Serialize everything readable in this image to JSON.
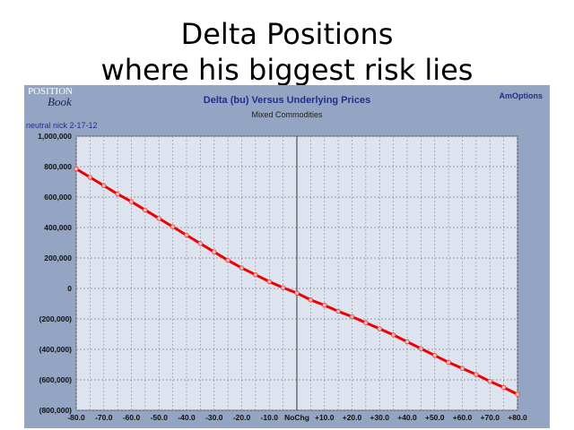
{
  "slide": {
    "title_line1": "Delta Positions",
    "title_line2": "where his biggest risk lies"
  },
  "panel": {
    "logo": "POSITION Book",
    "brand": "AmOptions",
    "note": "neutral nick 2-17-12"
  },
  "colors": {
    "panel": "#93a5c3",
    "plot": "#dde3ef",
    "line": "#ee0000"
  },
  "chart_data": {
    "type": "line",
    "title": "Delta (bu) Versus Underlying Prices",
    "subtitle": "Mixed Commodities",
    "xlabel": "",
    "ylabel": "",
    "x": [
      -80,
      -75,
      -70,
      -65,
      -60,
      -55,
      -50,
      -45,
      -40,
      -35,
      -30,
      -25,
      -20,
      -15,
      -10,
      -5,
      0,
      5,
      10,
      15,
      20,
      25,
      30,
      35,
      40,
      45,
      50,
      55,
      60,
      65,
      70,
      75,
      80
    ],
    "series": [
      {
        "values": [
          785000,
          730000,
          675000,
          620000,
          570000,
          515000,
          460000,
          405000,
          350000,
          295000,
          240000,
          185000,
          135000,
          90000,
          45000,
          5000,
          -30000,
          -75000,
          -110000,
          -150000,
          -185000,
          -225000,
          -265000,
          -305000,
          -350000,
          -395000,
          -440000,
          -485000,
          -525000,
          -565000,
          -610000,
          -650000,
          -695000
        ]
      }
    ],
    "xlim": [
      -80,
      80
    ],
    "ylim": [
      -800000,
      1000000
    ],
    "x_ticks": [
      -80,
      -70,
      -60,
      -50,
      -40,
      -30,
      -20,
      -10,
      0,
      10,
      20,
      30,
      40,
      50,
      60,
      70,
      80
    ],
    "x_tick_labels": [
      "-80.0",
      "-70.0",
      "-60.0",
      "-50.0",
      "-40.0",
      "-30.0",
      "-20.0",
      "-10.0",
      "NoChg",
      "+10.0",
      "+20.0",
      "+30.0",
      "+40.0",
      "+50.0",
      "+60.0",
      "+70.0",
      "+80.0"
    ],
    "y_ticks": [
      1000000,
      800000,
      600000,
      400000,
      200000,
      0,
      -200000,
      -400000,
      -600000,
      -800000
    ],
    "y_tick_labels": [
      "1,000,000",
      "800,000",
      "600,000",
      "400,000",
      "200,000",
      "0",
      "(200,000)",
      "(400,000)",
      "(600,000)",
      "(800,000)"
    ],
    "grid": true,
    "legend": "none"
  }
}
